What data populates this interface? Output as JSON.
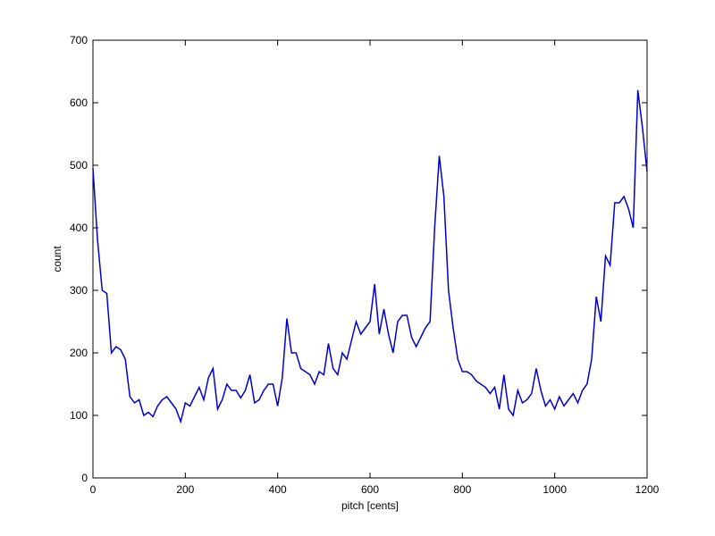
{
  "chart_data": {
    "type": "line",
    "xlabel": "pitch [cents]",
    "ylabel": "count",
    "x": [
      0,
      10,
      20,
      30,
      40,
      50,
      60,
      70,
      80,
      90,
      100,
      110,
      120,
      130,
      140,
      150,
      160,
      170,
      180,
      190,
      200,
      210,
      220,
      230,
      240,
      250,
      260,
      270,
      280,
      290,
      300,
      310,
      320,
      330,
      340,
      350,
      360,
      370,
      380,
      390,
      400,
      410,
      420,
      430,
      440,
      450,
      460,
      470,
      480,
      490,
      500,
      510,
      520,
      530,
      540,
      550,
      560,
      570,
      580,
      590,
      600,
      610,
      620,
      630,
      640,
      650,
      660,
      670,
      680,
      690,
      700,
      710,
      720,
      730,
      740,
      750,
      760,
      770,
      780,
      790,
      800,
      810,
      820,
      830,
      840,
      850,
      860,
      870,
      880,
      890,
      900,
      910,
      920,
      930,
      940,
      950,
      960,
      970,
      980,
      990,
      1000,
      1010,
      1020,
      1030,
      1040,
      1050,
      1060,
      1070,
      1080,
      1090,
      1100,
      1110,
      1120,
      1130,
      1140,
      1150,
      1160,
      1170,
      1180,
      1190,
      1200
    ],
    "series": [
      {
        "name": "count",
        "color": "#0000cc",
        "values": [
          495,
          380,
          300,
          295,
          200,
          210,
          205,
          190,
          130,
          120,
          125,
          100,
          105,
          98,
          115,
          125,
          130,
          120,
          110,
          90,
          120,
          115,
          130,
          145,
          125,
          160,
          175,
          110,
          125,
          150,
          140,
          140,
          128,
          140,
          165,
          120,
          125,
          140,
          150,
          150,
          115,
          160,
          255,
          200,
          200,
          175,
          170,
          165,
          150,
          170,
          165,
          215,
          175,
          165,
          200,
          190,
          220,
          250,
          230,
          240,
          250,
          310,
          230,
          270,
          230,
          200,
          250,
          260,
          260,
          225,
          210,
          225,
          240,
          250,
          400,
          515,
          450,
          300,
          240,
          190,
          170,
          170,
          165,
          155,
          150,
          145,
          135,
          145,
          110,
          165,
          110,
          100,
          140,
          120,
          125,
          135,
          175,
          140,
          115,
          125,
          110,
          130,
          115,
          125,
          135,
          120,
          140,
          150,
          190,
          290,
          250,
          355,
          340,
          440,
          440,
          450,
          430,
          400,
          620,
          560,
          490
        ]
      }
    ],
    "xlim": [
      0,
      1200
    ],
    "xticks": [
      0,
      200,
      400,
      600,
      800,
      1000,
      1200
    ],
    "ylim": [
      0,
      700
    ],
    "yticks": [
      0,
      100,
      200,
      300,
      400,
      500,
      600,
      700
    ]
  }
}
